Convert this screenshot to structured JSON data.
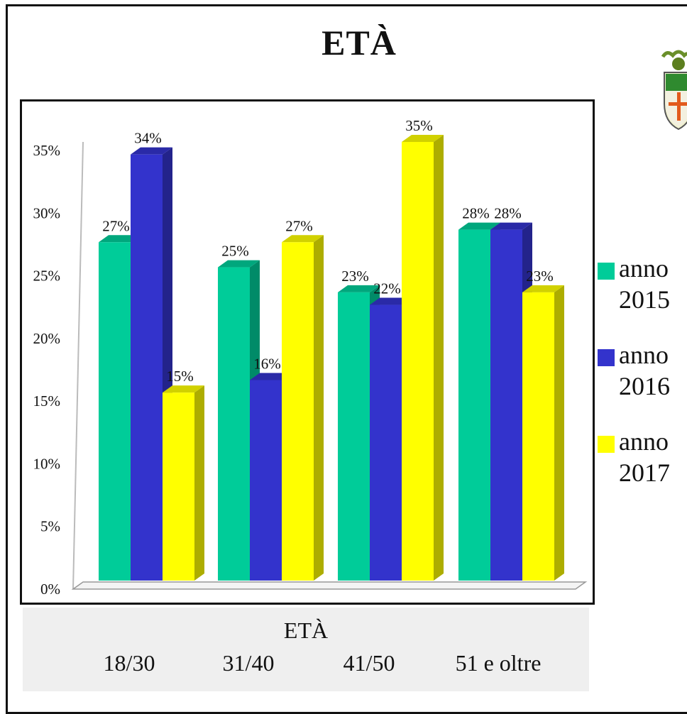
{
  "header": {
    "title": "ETÀ"
  },
  "logo": {
    "icon": "coat-of-arms-icon"
  },
  "colors": {
    "anno_2015": "#00cc99",
    "anno_2016": "#3333cc",
    "anno_2017": "#ffff00"
  },
  "chart_data": {
    "type": "bar",
    "xlabel": "ETÀ",
    "ylabel": "",
    "ylim": [
      0,
      35
    ],
    "yticks": [
      "0%",
      "5%",
      "10%",
      "15%",
      "20%",
      "25%",
      "30%",
      "35%"
    ],
    "categories": [
      "18/30",
      "31/40",
      "41/50",
      "51 e oltre"
    ],
    "series": [
      {
        "name": "anno 2015",
        "values": [
          27,
          25,
          23,
          28
        ],
        "labels": [
          "27%",
          "25%",
          "23%",
          "28%"
        ]
      },
      {
        "name": "anno 2016",
        "values": [
          34,
          16,
          22,
          28
        ],
        "labels": [
          "34%",
          "16%",
          "22%",
          "28%"
        ]
      },
      {
        "name": "anno 2017",
        "values": [
          15,
          27,
          35,
          23
        ],
        "labels": [
          "15%",
          "27%",
          "35%",
          "23%"
        ]
      }
    ],
    "legend_position": "right",
    "grid": false,
    "style": "3d-bar"
  }
}
